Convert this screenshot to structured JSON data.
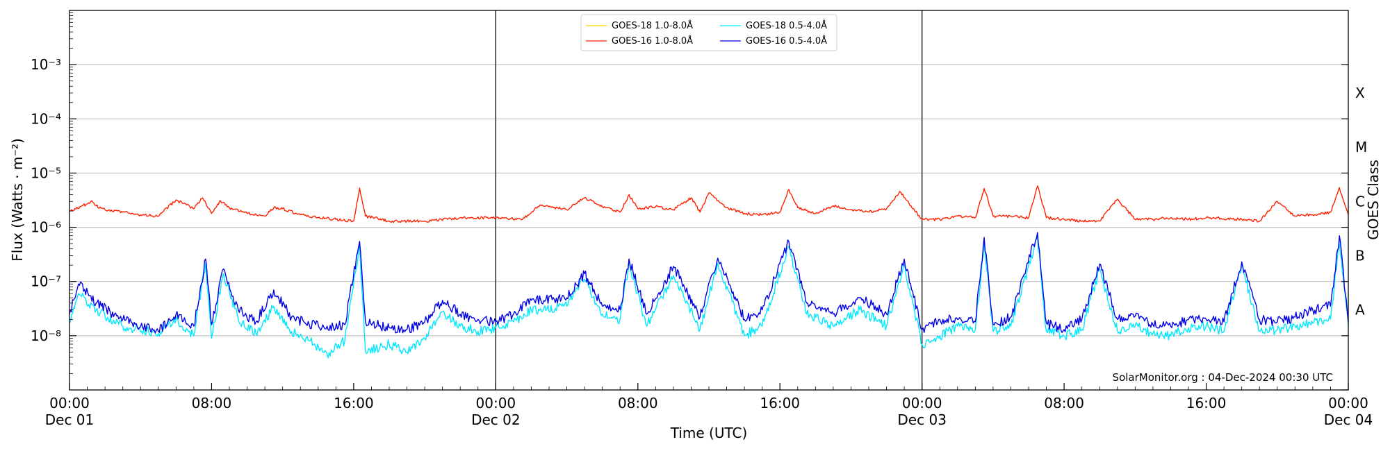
{
  "chart_data": {
    "type": "line",
    "xlabel": "Time (UTC)",
    "ylabel": "Flux (Watts · m⁻²)",
    "ylabel_right": "GOES Class",
    "y_scale": "log",
    "ylim": [
      1e-09,
      0.01
    ],
    "xlim": [
      "2024-12-01 00:00",
      "2024-12-04 00:00"
    ],
    "y_ticks": [
      {
        "value": 1e-08,
        "label": "10⁻⁸"
      },
      {
        "value": 1e-07,
        "label": "10⁻⁷"
      },
      {
        "value": 1e-06,
        "label": "10⁻⁶"
      },
      {
        "value": 1e-05,
        "label": "10⁻⁵"
      },
      {
        "value": 0.0001,
        "label": "10⁻⁴"
      },
      {
        "value": 0.001,
        "label": "10⁻³"
      }
    ],
    "x_ticks": [
      {
        "value": "2024-12-01 00:00",
        "time": "00:00",
        "date": "Dec 01"
      },
      {
        "value": "2024-12-01 08:00",
        "time": "08:00",
        "date": ""
      },
      {
        "value": "2024-12-01 16:00",
        "time": "16:00",
        "date": ""
      },
      {
        "value": "2024-12-02 00:00",
        "time": "00:00",
        "date": "Dec 02"
      },
      {
        "value": "2024-12-02 08:00",
        "time": "08:00",
        "date": ""
      },
      {
        "value": "2024-12-02 16:00",
        "time": "16:00",
        "date": ""
      },
      {
        "value": "2024-12-03 00:00",
        "time": "00:00",
        "date": "Dec 03"
      },
      {
        "value": "2024-12-03 08:00",
        "time": "08:00",
        "date": ""
      },
      {
        "value": "2024-12-03 16:00",
        "time": "16:00",
        "date": ""
      },
      {
        "value": "2024-12-04 00:00",
        "time": "00:00",
        "date": "Dec 04"
      }
    ],
    "day_boundaries": [
      "2024-12-02 00:00",
      "2024-12-03 00:00"
    ],
    "goes_classes": [
      {
        "label": "A",
        "value": 3e-08
      },
      {
        "label": "B",
        "value": 3e-07
      },
      {
        "label": "C",
        "value": 3e-06
      },
      {
        "label": "M",
        "value": 3e-05
      },
      {
        "label": "X",
        "value": 0.0003
      }
    ],
    "grid": "horizontal",
    "legend_position": "top-center",
    "series": [
      {
        "name": "GOES-18 1.0-8.0Å",
        "color": "#ffd700",
        "values": []
      },
      {
        "name": "GOES-16 1.0-8.0Å",
        "color": "#ff2000",
        "x": [
          "2024-12-01 00:00",
          "2024-12-01 01:00",
          "2024-12-01 01:15",
          "2024-12-01 01:30",
          "2024-12-01 02:00",
          "2024-12-01 03:00",
          "2024-12-01 04:00",
          "2024-12-01 05:00",
          "2024-12-01 06:00",
          "2024-12-01 07:00",
          "2024-12-01 07:30",
          "2024-12-01 08:00",
          "2024-12-01 08:30",
          "2024-12-01 09:00",
          "2024-12-01 10:00",
          "2024-12-01 11:00",
          "2024-12-01 11:30",
          "2024-12-01 12:00",
          "2024-12-01 13:00",
          "2024-12-01 14:00",
          "2024-12-01 15:00",
          "2024-12-01 16:00",
          "2024-12-01 16:20",
          "2024-12-01 16:40",
          "2024-12-01 18:00",
          "2024-12-01 20:00",
          "2024-12-01 22:00",
          "2024-12-02 00:00",
          "2024-12-02 01:30",
          "2024-12-02 02:30",
          "2024-12-02 04:00",
          "2024-12-02 05:00",
          "2024-12-02 06:00",
          "2024-12-02 07:00",
          "2024-12-02 07:30",
          "2024-12-02 08:00",
          "2024-12-02 09:00",
          "2024-12-02 10:00",
          "2024-12-02 11:00",
          "2024-12-02 11:30",
          "2024-12-02 12:00",
          "2024-12-02 13:00",
          "2024-12-02 14:00",
          "2024-12-02 15:00",
          "2024-12-02 16:00",
          "2024-12-02 16:30",
          "2024-12-02 17:00",
          "2024-12-02 18:00",
          "2024-12-02 19:00",
          "2024-12-02 20:00",
          "2024-12-02 21:00",
          "2024-12-02 22:00",
          "2024-12-02 22:45",
          "2024-12-02 23:30",
          "2024-12-03 00:00",
          "2024-12-03 01:00",
          "2024-12-03 02:00",
          "2024-12-03 03:00",
          "2024-12-03 03:30",
          "2024-12-03 04:00",
          "2024-12-03 05:00",
          "2024-12-03 06:00",
          "2024-12-03 06:30",
          "2024-12-03 07:00",
          "2024-12-03 08:00",
          "2024-12-03 09:00",
          "2024-12-03 10:00",
          "2024-12-03 11:00",
          "2024-12-03 12:00",
          "2024-12-03 13:00",
          "2024-12-03 14:00",
          "2024-12-03 15:00",
          "2024-12-03 16:00",
          "2024-12-03 18:00",
          "2024-12-03 19:00",
          "2024-12-03 20:00",
          "2024-12-03 21:00",
          "2024-12-03 22:00",
          "2024-12-03 23:00",
          "2024-12-03 23:30",
          "2024-12-04 00:00"
        ],
        "values": [
          2e-06,
          2.7e-06,
          3.1e-06,
          2.5e-06,
          2.1e-06,
          1.9e-06,
          1.7e-06,
          1.6e-06,
          3.2e-06,
          2.2e-06,
          3.5e-06,
          1.8e-06,
          3.1e-06,
          2.3e-06,
          1.8e-06,
          1.6e-06,
          2.3e-06,
          2.2e-06,
          1.7e-06,
          1.5e-06,
          1.4e-06,
          1.3e-06,
          5.3e-06,
          1.6e-06,
          1.3e-06,
          1.3e-06,
          1.5e-06,
          1.5e-06,
          1.4e-06,
          2.6e-06,
          2.1e-06,
          3.5e-06,
          2.4e-06,
          1.9e-06,
          4e-06,
          2.2e-06,
          2.4e-06,
          2.1e-06,
          3.5e-06,
          1.9e-06,
          4.3e-06,
          2.3e-06,
          1.8e-06,
          1.7e-06,
          1.9e-06,
          5e-06,
          2.3e-06,
          1.8e-06,
          2.5e-06,
          2.1e-06,
          1.9e-06,
          2.2e-06,
          4.6e-06,
          2.2e-06,
          1.4e-06,
          1.4e-06,
          1.6e-06,
          1.5e-06,
          5.2e-06,
          1.6e-06,
          1.6e-06,
          1.5e-06,
          5.8e-06,
          1.5e-06,
          1.4e-06,
          1.3e-06,
          1.3e-06,
          3.3e-06,
          1.4e-06,
          1.4e-06,
          1.5e-06,
          1.4e-06,
          1.5e-06,
          1.4e-06,
          1.3e-06,
          3e-06,
          1.6e-06,
          1.7e-06,
          1.9e-06,
          5.4e-06,
          1.7e-06
        ]
      },
      {
        "name": "GOES-18 0.5-4.0Å",
        "color": "#00e8ff",
        "x": [
          "2024-12-01 00:00",
          "2024-12-01 00:30",
          "2024-12-01 01:30",
          "2024-12-01 03:00",
          "2024-12-01 05:00",
          "2024-12-01 06:00",
          "2024-12-01 07:00",
          "2024-12-01 07:40",
          "2024-12-01 08:00",
          "2024-12-01 08:40",
          "2024-12-01 09:30",
          "2024-12-01 10:30",
          "2024-12-01 11:30",
          "2024-12-01 12:30",
          "2024-12-01 13:30",
          "2024-12-01 14:30",
          "2024-12-01 15:30",
          "2024-12-01 16:20",
          "2024-12-01 16:40",
          "2024-12-01 18:00",
          "2024-12-01 19:00",
          "2024-12-01 20:00",
          "2024-12-01 21:00",
          "2024-12-01 22:00",
          "2024-12-01 23:00",
          "2024-12-02 00:00",
          "2024-12-02 01:00",
          "2024-12-02 02:00",
          "2024-12-02 04:00",
          "2024-12-02 05:00",
          "2024-12-02 06:00",
          "2024-12-02 07:00",
          "2024-12-02 07:30",
          "2024-12-02 08:30",
          "2024-12-02 10:00",
          "2024-12-02 11:30",
          "2024-12-02 12:30",
          "2024-12-02 14:00",
          "2024-12-02 15:00",
          "2024-12-02 16:30",
          "2024-12-02 17:30",
          "2024-12-02 19:00",
          "2024-12-02 20:30",
          "2024-12-02 22:00",
          "2024-12-02 23:00",
          "2024-12-03 00:00",
          "2024-12-03 01:00",
          "2024-12-03 02:00",
          "2024-12-03 03:00",
          "2024-12-03 03:30",
          "2024-12-03 04:00",
          "2024-12-03 05:00",
          "2024-12-03 06:30",
          "2024-12-03 07:00",
          "2024-12-03 08:00",
          "2024-12-03 09:00",
          "2024-12-03 10:00",
          "2024-12-03 11:00",
          "2024-12-03 12:00",
          "2024-12-03 13:00",
          "2024-12-03 14:00",
          "2024-12-03 15:00",
          "2024-12-03 16:00",
          "2024-12-03 17:00",
          "2024-12-03 18:00",
          "2024-12-03 19:00",
          "2024-12-03 20:00",
          "2024-12-03 21:00",
          "2024-12-03 22:00",
          "2024-12-03 23:00",
          "2024-12-03 23:30",
          "2024-12-04 00:00"
        ],
        "values": [
          1.8e-08,
          6e-08,
          3e-08,
          1.5e-08,
          1.1e-08,
          2e-08,
          1e-08,
          2.2e-07,
          9e-09,
          1.4e-07,
          2e-08,
          1.1e-08,
          3.5e-08,
          1.2e-08,
          8e-09,
          4.5e-09,
          8e-09,
          4.5e-07,
          5e-09,
          7e-09,
          5e-09,
          9e-09,
          2.8e-08,
          1.5e-08,
          1.2e-08,
          1.4e-08,
          1.8e-08,
          3e-08,
          3.5e-08,
          1.1e-07,
          2.5e-08,
          2e-08,
          2.2e-07,
          1.5e-08,
          1.3e-07,
          1.3e-08,
          2.2e-07,
          1e-08,
          1.5e-08,
          4.5e-07,
          2.5e-08,
          1.5e-08,
          3e-08,
          1.5e-08,
          2e-07,
          7e-09,
          1e-08,
          1.5e-08,
          1.3e-08,
          5.5e-07,
          1.2e-08,
          1.5e-08,
          6.5e-07,
          1.2e-08,
          1e-08,
          1.3e-08,
          1.7e-07,
          1.2e-08,
          1.5e-08,
          1.1e-08,
          1e-08,
          1.4e-08,
          1.5e-08,
          1.2e-08,
          2e-07,
          1.2e-08,
          1.3e-08,
          1.5e-08,
          1.7e-08,
          2e-08,
          5.5e-07,
          1.5e-08
        ]
      },
      {
        "name": "GOES-16 0.5-4.0Å",
        "color": "#0000e6",
        "x": [
          "2024-12-01 00:00",
          "2024-12-01 00:30",
          "2024-12-01 01:30",
          "2024-12-01 03:00",
          "2024-12-01 05:00",
          "2024-12-01 06:00",
          "2024-12-01 07:00",
          "2024-12-01 07:40",
          "2024-12-01 08:00",
          "2024-12-01 08:40",
          "2024-12-01 09:30",
          "2024-12-01 10:30",
          "2024-12-01 11:30",
          "2024-12-01 12:30",
          "2024-12-01 13:30",
          "2024-12-01 14:30",
          "2024-12-01 15:30",
          "2024-12-01 16:20",
          "2024-12-01 16:40",
          "2024-12-01 18:00",
          "2024-12-01 19:00",
          "2024-12-01 20:00",
          "2024-12-01 21:00",
          "2024-12-01 22:00",
          "2024-12-01 23:00",
          "2024-12-02 00:00",
          "2024-12-02 01:00",
          "2024-12-02 02:00",
          "2024-12-02 04:00",
          "2024-12-02 05:00",
          "2024-12-02 06:00",
          "2024-12-02 07:00",
          "2024-12-02 07:30",
          "2024-12-02 08:30",
          "2024-12-02 10:00",
          "2024-12-02 11:30",
          "2024-12-02 12:30",
          "2024-12-02 14:00",
          "2024-12-02 15:00",
          "2024-12-02 16:30",
          "2024-12-02 17:30",
          "2024-12-02 19:00",
          "2024-12-02 20:30",
          "2024-12-02 22:00",
          "2024-12-02 23:00",
          "2024-12-03 00:00",
          "2024-12-03 01:00",
          "2024-12-03 02:00",
          "2024-12-03 03:00",
          "2024-12-03 03:30",
          "2024-12-03 04:00",
          "2024-12-03 05:00",
          "2024-12-03 06:30",
          "2024-12-03 07:00",
          "2024-12-03 08:00",
          "2024-12-03 09:00",
          "2024-12-03 10:00",
          "2024-12-03 11:00",
          "2024-12-03 12:00",
          "2024-12-03 13:00",
          "2024-12-03 14:00",
          "2024-12-03 15:00",
          "2024-12-03 16:00",
          "2024-12-03 17:00",
          "2024-12-03 18:00",
          "2024-12-03 19:00",
          "2024-12-03 20:00",
          "2024-12-03 21:00",
          "2024-12-03 22:00",
          "2024-12-03 23:00",
          "2024-12-03 23:30",
          "2024-12-04 00:00"
        ],
        "values": [
          2.5e-08,
          9e-08,
          4e-08,
          2e-08,
          1.2e-08,
          2.5e-08,
          1.5e-08,
          2.6e-07,
          1.6e-08,
          1.7e-07,
          3e-08,
          1.8e-08,
          7e-08,
          2.2e-08,
          1.6e-08,
          1.5e-08,
          1.6e-08,
          5.5e-07,
          1.8e-08,
          1.4e-08,
          1.3e-08,
          1.8e-08,
          4.5e-08,
          2.5e-08,
          2e-08,
          1.8e-08,
          2.5e-08,
          4.5e-08,
          5e-08,
          1.4e-07,
          3.5e-08,
          3e-08,
          2.6e-07,
          2.5e-08,
          1.9e-07,
          2.2e-08,
          2.7e-07,
          2e-08,
          3e-08,
          5.5e-07,
          4e-08,
          2.5e-08,
          5e-08,
          2.5e-08,
          2.6e-07,
          1.3e-08,
          2e-08,
          2e-08,
          1.8e-08,
          6.5e-07,
          1.6e-08,
          2.2e-08,
          8e-07,
          1.7e-08,
          1.3e-08,
          2e-08,
          2.1e-07,
          2e-08,
          2.3e-08,
          1.6e-08,
          1.5e-08,
          2e-08,
          2e-08,
          1.8e-08,
          2.3e-07,
          2e-08,
          1.8e-08,
          2.2e-08,
          3e-08,
          3.5e-08,
          7e-07,
          1.8e-08
        ]
      }
    ],
    "annotation": "SolarMonitor.org : 04-Dec-2024 00:30 UTC"
  }
}
